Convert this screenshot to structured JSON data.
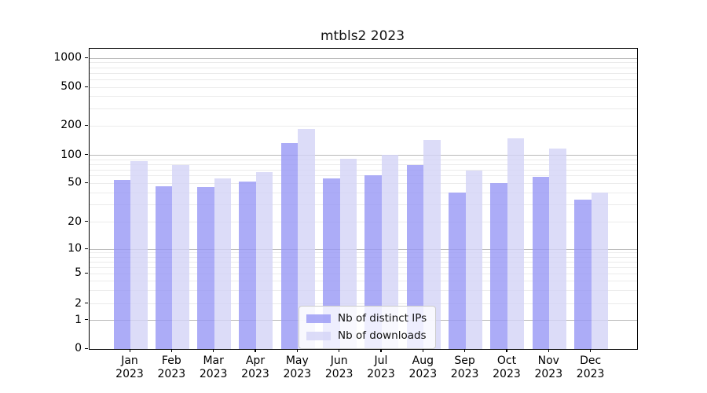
{
  "title": "mtbls2 2023",
  "chart_data": {
    "type": "bar",
    "title": "mtbls2 2023",
    "months": [
      "Jan",
      "Feb",
      "Mar",
      "Apr",
      "May",
      "Jun",
      "Jul",
      "Aug",
      "Sep",
      "Oct",
      "Nov",
      "Dec"
    ],
    "year": "2023",
    "categories": [
      "Jan 2023",
      "Feb 2023",
      "Mar 2023",
      "Apr 2023",
      "May 2023",
      "Jun 2023",
      "Jul 2023",
      "Aug 2023",
      "Sep 2023",
      "Oct 2023",
      "Nov 2023",
      "Dec 2023"
    ],
    "series": [
      {
        "name": "Nb of distinct IPs",
        "color": "#9797f5",
        "alpha": 0.8,
        "values": [
          54,
          47,
          46,
          52,
          134,
          57,
          61,
          79,
          40,
          50,
          59,
          34
        ]
      },
      {
        "name": "Nb of downloads",
        "color": "#d3d3f6",
        "alpha": 0.8,
        "values": [
          87,
          79,
          57,
          66,
          187,
          92,
          102,
          143,
          69,
          150,
          118,
          40
        ]
      }
    ],
    "yscale": "symlog",
    "y_tick_labels": [
      "0",
      "1",
      "2",
      "5",
      "10",
      "20",
      "50",
      "100",
      "200",
      "500",
      "1000"
    ],
    "y_tick_values": [
      0,
      1,
      2,
      5,
      10,
      20,
      50,
      100,
      200,
      500,
      1000
    ],
    "ylim": [
      0,
      1250
    ],
    "grid": "both",
    "grid_major_color": "#b9b9b9",
    "grid_minor_color": "#ebebeb",
    "legend_position": "lower center",
    "xlabel": "",
    "ylabel": ""
  },
  "legend": {
    "items": [
      {
        "label": "Nb of distinct IPs"
      },
      {
        "label": "Nb of downloads"
      }
    ]
  }
}
